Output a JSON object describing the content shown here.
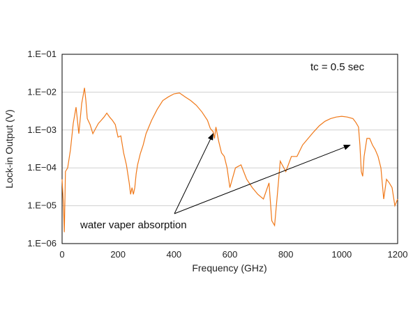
{
  "chart_data": {
    "type": "line",
    "xlabel": "Frequency (GHz)",
    "ylabel": "Lock-in Output (V)",
    "xlim": [
      0,
      1200
    ],
    "ylim": [
      1e-06,
      0.1
    ],
    "yscale": "log",
    "xticks": [
      0,
      200,
      400,
      600,
      800,
      1000,
      1200
    ],
    "xtick_labels": [
      "0",
      "200",
      "400",
      "600",
      "800",
      "1000",
      "1200"
    ],
    "yticks": [
      0.1,
      0.01,
      0.001,
      0.0001,
      1e-05,
      1e-06
    ],
    "ytick_labels": [
      "1.E−01",
      "1.E−02",
      "1.E−03",
      "1.E−04",
      "1.E−05",
      "1.E−06"
    ],
    "grid": "horizontal",
    "line_color": "#f07818",
    "series": [
      {
        "x": [
          0,
          5,
          8,
          12,
          20,
          30,
          40,
          50,
          60,
          70,
          75,
          80,
          85,
          90,
          100,
          110,
          120,
          130,
          140,
          150,
          160,
          170,
          180,
          190,
          200,
          210,
          220,
          230,
          240,
          245,
          250,
          255,
          260,
          265,
          270,
          280,
          290,
          300,
          320,
          340,
          360,
          380,
          400,
          420,
          440,
          460,
          480,
          500,
          520,
          530,
          540,
          545,
          550,
          560,
          570,
          580,
          590,
          600,
          620,
          640,
          660,
          680,
          700,
          720,
          740,
          750,
          760,
          770,
          780,
          800,
          820,
          840,
          860,
          880,
          900,
          920,
          940,
          960,
          980,
          1000,
          1020,
          1040,
          1050,
          1060,
          1065,
          1070,
          1075,
          1080,
          1090,
          1100,
          1110,
          1120,
          1130,
          1140,
          1150,
          1160,
          1170,
          1180,
          1190,
          1200
        ],
        "y": [
          5e-05,
          1e-05,
          2e-06,
          8e-05,
          0.0001,
          0.0003,
          0.0015,
          0.004,
          0.0008,
          0.005,
          0.008,
          0.013,
          0.006,
          0.002,
          0.0014,
          0.0008,
          0.0011,
          0.0015,
          0.0018,
          0.0022,
          0.0028,
          0.0022,
          0.0018,
          0.0014,
          0.00065,
          0.0007,
          0.00025,
          0.00012,
          4e-05,
          2e-05,
          3e-05,
          2e-05,
          3e-05,
          7e-05,
          0.00012,
          0.00024,
          0.0004,
          0.0008,
          0.0018,
          0.0035,
          0.006,
          0.0075,
          0.009,
          0.0095,
          0.0075,
          0.006,
          0.0045,
          0.003,
          0.0018,
          0.0011,
          0.0009,
          0.0006,
          0.0012,
          0.0005,
          0.00025,
          0.0002,
          0.0001,
          3e-05,
          0.0001,
          0.00012,
          5e-05,
          3e-05,
          2e-05,
          1.5e-05,
          4e-05,
          4e-06,
          3e-06,
          2e-05,
          0.00015,
          8e-05,
          0.0002,
          0.0002,
          0.0004,
          0.0006,
          0.0009,
          0.0013,
          0.0017,
          0.002,
          0.0022,
          0.0023,
          0.0022,
          0.002,
          0.0016,
          0.0012,
          0.0004,
          8e-05,
          6e-05,
          0.0002,
          0.0006,
          0.0006,
          0.0004,
          0.0003,
          0.0002,
          0.0001,
          1.5e-05,
          5e-05,
          4e-05,
          3e-05,
          1e-05,
          1.5e-05
        ]
      }
    ],
    "annotations": [
      {
        "text": "tc = 0.5 sec"
      },
      {
        "text": "water vaper absorption",
        "arrow_targets": [
          [
            540,
            0.0008
          ],
          [
            1030,
            0.0004
          ]
        ]
      }
    ]
  }
}
